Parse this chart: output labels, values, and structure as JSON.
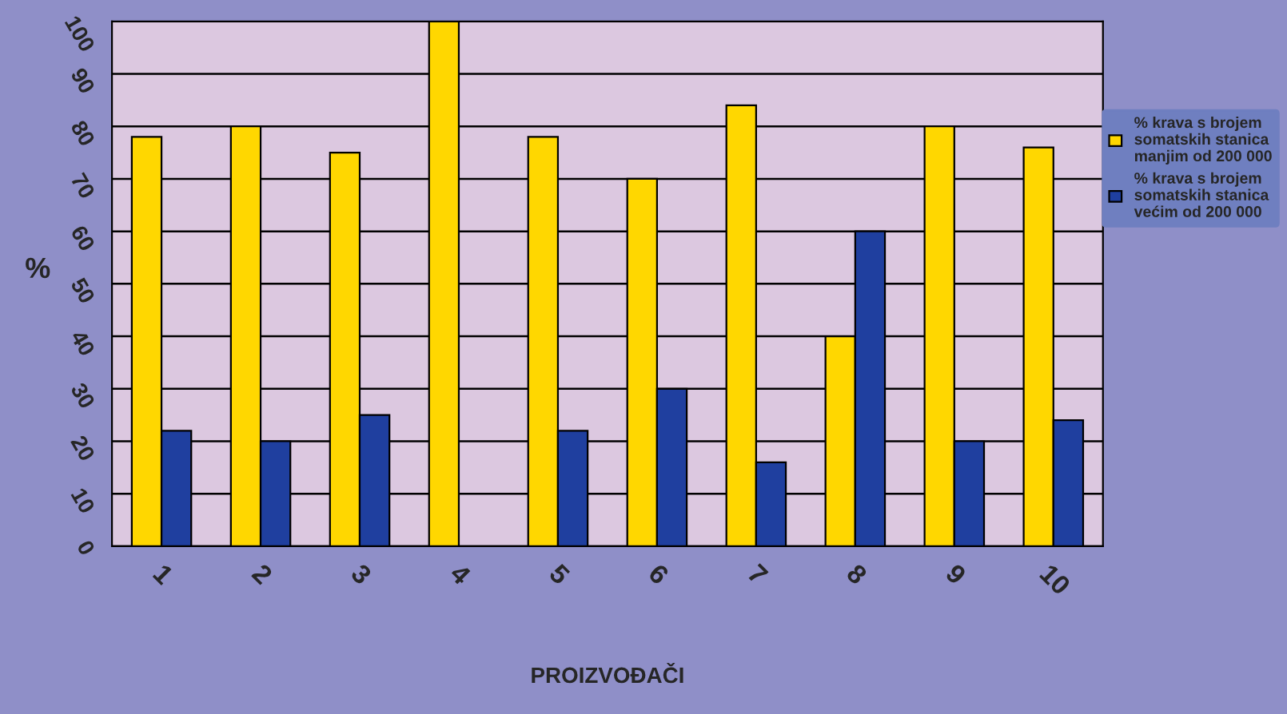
{
  "chart_data": {
    "type": "bar",
    "ylabel": "%",
    "xlabel": "PROIZVOĐAČI",
    "categories": [
      "1",
      "2",
      "3",
      "4",
      "5",
      "6",
      "7",
      "8",
      "9",
      "10"
    ],
    "series": [
      {
        "name": "% krava s brojem somatskih stanica manjim od 200 000",
        "color": "#ffd700",
        "values": [
          78,
          80,
          75,
          100,
          78,
          70,
          84,
          40,
          80,
          76
        ]
      },
      {
        "name": "% krava s brojem somatskih stanica većim od 200 000",
        "color": "#1f3f9f",
        "values": [
          22,
          20,
          25,
          null,
          22,
          30,
          16,
          60,
          20,
          24
        ]
      }
    ],
    "ylim": [
      0,
      100
    ],
    "yticks": [
      0,
      10,
      20,
      30,
      40,
      50,
      60,
      70,
      80,
      90,
      100
    ],
    "grid": "y",
    "legend": "right"
  }
}
